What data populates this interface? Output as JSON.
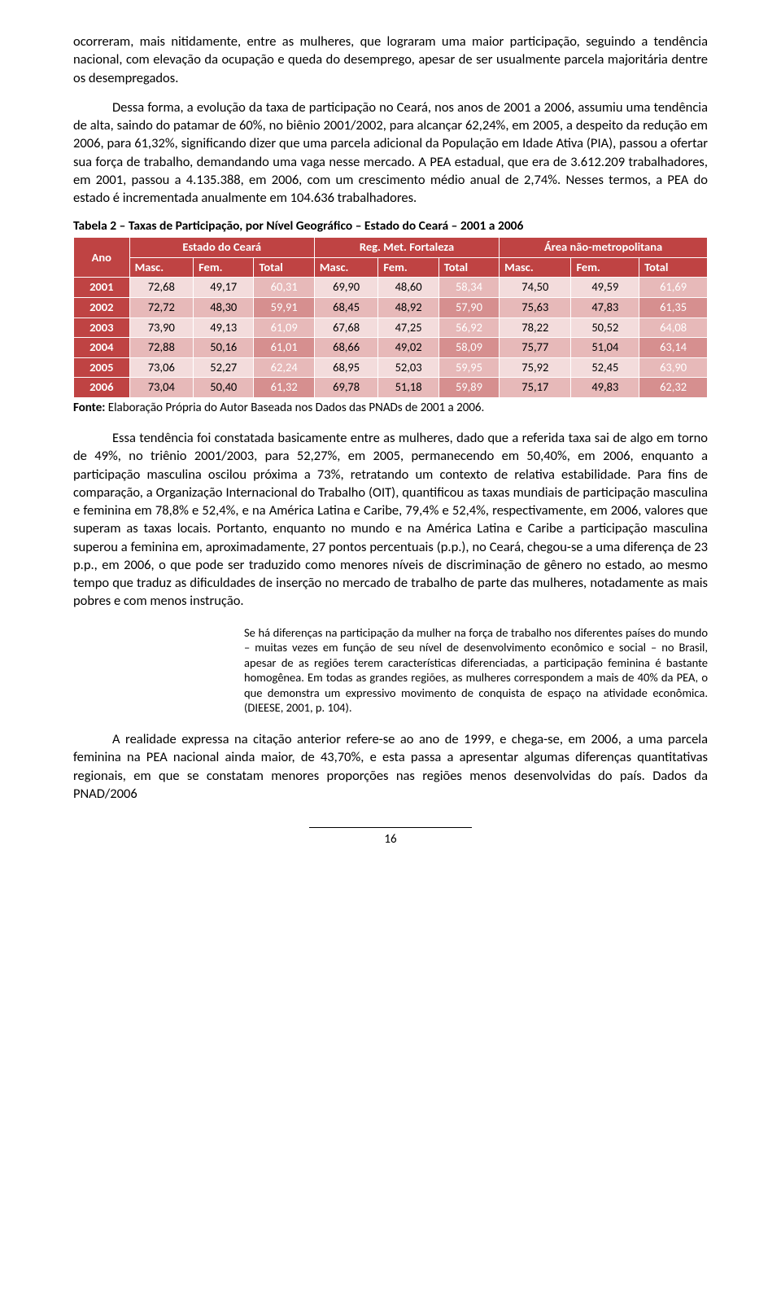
{
  "para1": "ocorreram, mais nitidamente, entre as mulheres, que lograram uma maior participação, seguindo a tendência nacional, com elevação da ocupação e queda do desemprego, apesar de ser usualmente parcela majoritária dentre os desempregados.",
  "para2": "Dessa forma, a evolução da taxa de participação no Ceará, nos anos de 2001 a 2006, assumiu uma tendência de alta, saindo do patamar de 60%, no biênio 2001/2002, para alcançar 62,24%, em 2005, a despeito da redução em 2006, para 61,32%, significando dizer que uma parcela adicional da População em Idade Ativa (PIA), passou a ofertar sua força de trabalho, demandando uma vaga nesse mercado. A PEA estadual, que era de 3.612.209 trabalhadores, em 2001, passou a 4.135.388, em 2006, com um crescimento médio anual de 2,74%. Nesses termos, a PEA do estado é incrementada anualmente em 104.636 trabalhadores.",
  "table": {
    "title": "Tabela 2 – Taxas de Participação, por Nível Geográfico – Estado do Ceará – 2001 a 2006",
    "header_row1_ano": "Ano",
    "groups": [
      "Estado do Ceará",
      "Reg. Met. Fortaleza",
      "Área não-metropolitana"
    ],
    "subcols": [
      "Masc.",
      "Fem.",
      "Total"
    ],
    "rows": [
      {
        "year": "2001",
        "v": [
          "72,68",
          "49,17",
          "60,31",
          "69,90",
          "48,60",
          "58,34",
          "74,50",
          "49,59",
          "61,69"
        ],
        "alt": false
      },
      {
        "year": "2002",
        "v": [
          "72,72",
          "48,30",
          "59,91",
          "68,45",
          "48,92",
          "57,90",
          "75,63",
          "47,83",
          "61,35"
        ],
        "alt": true
      },
      {
        "year": "2003",
        "v": [
          "73,90",
          "49,13",
          "61,09",
          "67,68",
          "47,25",
          "56,92",
          "78,22",
          "50,52",
          "64,08"
        ],
        "alt": false
      },
      {
        "year": "2004",
        "v": [
          "72,88",
          "50,16",
          "61,01",
          "68,66",
          "49,02",
          "58,09",
          "75,77",
          "51,04",
          "63,14"
        ],
        "alt": true
      },
      {
        "year": "2005",
        "v": [
          "73,06",
          "52,27",
          "62,24",
          "68,95",
          "52,03",
          "59,95",
          "75,92",
          "52,45",
          "63,90"
        ],
        "alt": false
      },
      {
        "year": "2006",
        "v": [
          "73,04",
          "50,40",
          "61,32",
          "69,78",
          "51,18",
          "59,89",
          "75,17",
          "49,83",
          "62,32"
        ],
        "alt": true
      }
    ],
    "source_label": "Fonte:",
    "source_text": " Elaboração Própria do Autor Baseada nos Dados das PNADs de 2001 a 2006."
  },
  "para3": "Essa tendência foi constatada basicamente entre as mulheres, dado que a referida taxa sai de algo em torno de 49%, no triênio 2001/2003, para 52,27%, em 2005, permanecendo em 50,40%, em 2006, enquanto a participação masculina oscilou próxima a 73%, retratando um contexto de relativa estabilidade. Para fins de comparação, a Organização Internacional do Trabalho (OIT), quantificou as taxas mundiais de participação masculina e feminina em 78,8% e 52,4%, e na América Latina e Caribe, 79,4% e 52,4%, respectivamente, em 2006, valores que superam as taxas locais. Portanto, enquanto no mundo e na América Latina e Caribe a participação masculina superou a feminina em, aproximadamente, 27 pontos percentuais (p.p.), no Ceará, chegou-se a uma diferença de 23 p.p., em 2006, o que pode ser traduzido como menores níveis de discriminação de gênero no estado, ao mesmo tempo que traduz as dificuldades de inserção no mercado de trabalho de parte das mulheres, notadamente as mais pobres e com menos instrução.",
  "quote": "Se há diferenças na participação da mulher na força de trabalho nos diferentes países do mundo – muitas vezes em função de seu nível de desenvolvimento econômico e social – no Brasil, apesar de as regiões terem características diferenciadas, a participação feminina é bastante homogênea. Em todas as grandes regiões, as mulheres correspondem a mais de 40% da PEA, o que demonstra um expressivo movimento de conquista de espaço na atividade econômica. (DIEESE, 2001, p. 104).",
  "para4": "A realidade expressa na citação anterior refere-se ao ano de 1999, e chega-se, em 2006, a uma parcela feminina na PEA nacional ainda maior, de 43,70%, e esta passa a apresentar algumas diferenças quantitativas regionais, em que se constatam menores proporções nas regiões menos desenvolvidas do país. Dados da PNAD/2006",
  "page_number": "16"
}
